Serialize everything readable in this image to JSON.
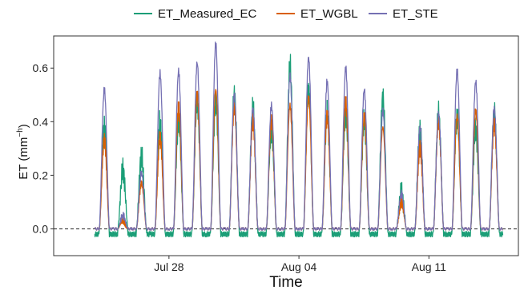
{
  "chart_data": {
    "type": "line",
    "xlabel": "Time",
    "ylabel_main": "ET (mm",
    "ylabel_sup": "−h",
    "ylabel_close": ")",
    "ylim": [
      -0.1,
      0.72
    ],
    "yticks": [
      0.0,
      0.2,
      0.4,
      0.6
    ],
    "ytick_labels": [
      "0.0",
      "0.2",
      "0.4",
      "0.6"
    ],
    "x_start": "2019-07-23",
    "x_end": "2019-08-15",
    "xticks": [
      {
        "date": "2019-07-28",
        "label": "Jul 28"
      },
      {
        "date": "2019-08-04",
        "label": "Aug 04"
      },
      {
        "date": "2019-08-11",
        "label": "Aug 11"
      }
    ],
    "reference_line": {
      "y": 0.0,
      "style": "dashed"
    },
    "legend_position": "top",
    "grid": false,
    "series": [
      {
        "name": "ET_Measured_EC",
        "color": "#1b9e77",
        "daily_peaks": [
          {
            "date": "2019-07-24",
            "value": 0.38
          },
          {
            "date": "2019-07-25",
            "value": 0.22
          },
          {
            "date": "2019-07-26",
            "value": 0.27
          },
          {
            "date": "2019-07-27",
            "value": 0.4
          },
          {
            "date": "2019-07-28",
            "value": 0.4
          },
          {
            "date": "2019-07-29",
            "value": 0.48
          },
          {
            "date": "2019-07-30",
            "value": 0.47
          },
          {
            "date": "2019-07-31",
            "value": 0.5
          },
          {
            "date": "2019-08-01",
            "value": 0.45
          },
          {
            "date": "2019-08-02",
            "value": 0.37
          },
          {
            "date": "2019-08-03",
            "value": 0.61
          },
          {
            "date": "2019-08-04",
            "value": 0.52
          },
          {
            "date": "2019-08-05",
            "value": 0.43
          },
          {
            "date": "2019-08-06",
            "value": 0.43
          },
          {
            "date": "2019-08-07",
            "value": 0.4
          },
          {
            "date": "2019-08-08",
            "value": 0.49
          },
          {
            "date": "2019-08-09",
            "value": 0.13
          },
          {
            "date": "2019-08-10",
            "value": 0.37
          },
          {
            "date": "2019-08-11",
            "value": 0.43
          },
          {
            "date": "2019-08-12",
            "value": 0.42
          },
          {
            "date": "2019-08-13",
            "value": 0.37
          },
          {
            "date": "2019-08-14",
            "value": 0.43
          }
        ]
      },
      {
        "name": "ET_WGBL",
        "color": "#d95f02",
        "daily_peaks": [
          {
            "date": "2019-07-24",
            "value": 0.33
          },
          {
            "date": "2019-07-25",
            "value": 0.03
          },
          {
            "date": "2019-07-26",
            "value": 0.17
          },
          {
            "date": "2019-07-27",
            "value": 0.34
          },
          {
            "date": "2019-07-28",
            "value": 0.45
          },
          {
            "date": "2019-07-29",
            "value": 0.5
          },
          {
            "date": "2019-07-30",
            "value": 0.52
          },
          {
            "date": "2019-07-31",
            "value": 0.45
          },
          {
            "date": "2019-08-01",
            "value": 0.4
          },
          {
            "date": "2019-08-02",
            "value": 0.4
          },
          {
            "date": "2019-08-03",
            "value": 0.46
          },
          {
            "date": "2019-08-04",
            "value": 0.49
          },
          {
            "date": "2019-08-05",
            "value": 0.42
          },
          {
            "date": "2019-08-06",
            "value": 0.47
          },
          {
            "date": "2019-08-07",
            "value": 0.42
          },
          {
            "date": "2019-08-08",
            "value": 0.38
          },
          {
            "date": "2019-08-09",
            "value": 0.1
          },
          {
            "date": "2019-08-10",
            "value": 0.3
          },
          {
            "date": "2019-08-11",
            "value": 0.4
          },
          {
            "date": "2019-08-12",
            "value": 0.42
          },
          {
            "date": "2019-08-13",
            "value": 0.44
          },
          {
            "date": "2019-08-14",
            "value": 0.39
          }
        ]
      },
      {
        "name": "ET_STE",
        "color": "#7570b3",
        "daily_peaks": [
          {
            "date": "2019-07-24",
            "value": 0.52
          },
          {
            "date": "2019-07-25",
            "value": 0.05
          },
          {
            "date": "2019-07-26",
            "value": 0.21
          },
          {
            "date": "2019-07-27",
            "value": 0.58
          },
          {
            "date": "2019-07-28",
            "value": 0.59
          },
          {
            "date": "2019-07-29",
            "value": 0.62
          },
          {
            "date": "2019-07-30",
            "value": 0.69
          },
          {
            "date": "2019-07-31",
            "value": 0.5
          },
          {
            "date": "2019-08-01",
            "value": 0.45
          },
          {
            "date": "2019-08-02",
            "value": 0.46
          },
          {
            "date": "2019-08-03",
            "value": 0.57
          },
          {
            "date": "2019-08-04",
            "value": 0.64
          },
          {
            "date": "2019-08-05",
            "value": 0.55
          },
          {
            "date": "2019-08-06",
            "value": 0.6
          },
          {
            "date": "2019-08-07",
            "value": 0.52
          },
          {
            "date": "2019-08-08",
            "value": 0.44
          },
          {
            "date": "2019-08-09",
            "value": 0.13
          },
          {
            "date": "2019-08-10",
            "value": 0.38
          },
          {
            "date": "2019-08-11",
            "value": 0.43
          },
          {
            "date": "2019-08-12",
            "value": 0.59
          },
          {
            "date": "2019-08-13",
            "value": 0.55
          },
          {
            "date": "2019-08-14",
            "value": 0.45
          }
        ]
      }
    ]
  }
}
